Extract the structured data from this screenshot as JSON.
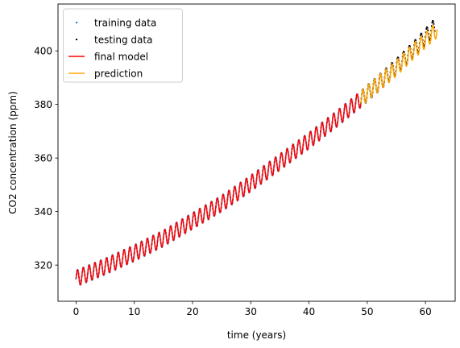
{
  "chart_data": {
    "type": "line",
    "xlabel": "time (years)",
    "ylabel": "CO2 concentration (ppm)",
    "xlim": [
      -3.1,
      65.1
    ],
    "ylim": [
      306.5,
      417.5
    ],
    "xticks": [
      0,
      10,
      20,
      30,
      40,
      50,
      60
    ],
    "yticks": [
      320,
      340,
      360,
      380,
      400
    ],
    "grid": false,
    "legend_position": "top-left",
    "legend": [
      "training data",
      "testing data",
      "final model",
      "prediction"
    ],
    "seasonal_amplitude_ppm": 3,
    "series": [
      {
        "name": "training data",
        "kind": "scatter",
        "color": "#1f77b4",
        "x_range": [
          0,
          48.9
        ],
        "x": [
          0,
          5,
          10,
          15,
          20,
          25,
          30,
          35,
          40,
          45,
          48.9
        ],
        "trend": [
          315,
          319.5,
          324.5,
          330,
          336.5,
          343,
          350.5,
          358.5,
          366.5,
          375,
          382
        ]
      },
      {
        "name": "testing data",
        "kind": "scatter",
        "color": "#000000",
        "x_range": [
          48.9,
          61.6
        ],
        "x": [
          48.9,
          52,
          55,
          58,
          61.6
        ],
        "trend": [
          382,
          388,
          394,
          400.5,
          409
        ]
      },
      {
        "name": "final model",
        "kind": "line",
        "color": "#ff0000",
        "x_range": [
          0,
          48.9
        ],
        "x": [
          0,
          5,
          10,
          15,
          20,
          25,
          30,
          35,
          40,
          45,
          48.9
        ],
        "trend": [
          315,
          319.5,
          324.5,
          330,
          336.5,
          343,
          350.5,
          358.5,
          366.5,
          375,
          382
        ]
      },
      {
        "name": "prediction",
        "kind": "line",
        "color": "#ffa500",
        "x_range": [
          48.9,
          62
        ],
        "x": [
          48.9,
          52,
          55,
          58,
          62
        ],
        "trend": [
          382,
          388,
          393.5,
          400,
          408
        ]
      }
    ]
  }
}
